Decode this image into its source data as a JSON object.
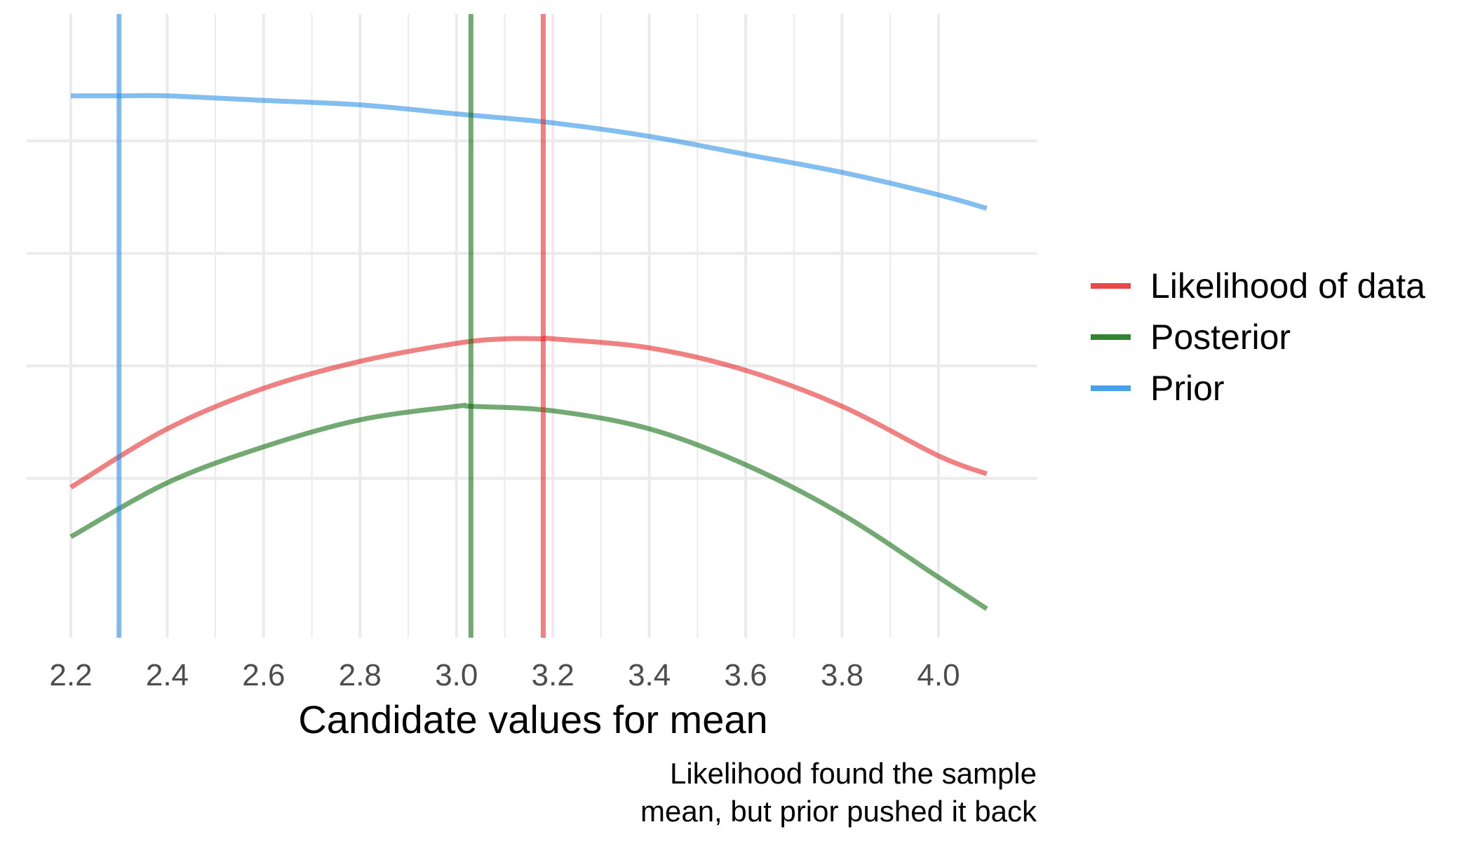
{
  "chart_data": {
    "type": "line",
    "title": "",
    "xlabel": "Candidate values for mean",
    "ylabel": "",
    "xlim": [
      2.2,
      4.1
    ],
    "ylim": [
      0,
      1.2
    ],
    "x_ticks": [
      "2.2",
      "2.4",
      "2.6",
      "2.8",
      "3.0",
      "3.2",
      "3.4",
      "3.6",
      "3.8",
      "4.0"
    ],
    "y_ticks_shown": false,
    "grid": true,
    "legend_position": "right",
    "series": [
      {
        "name": "Likelihood of data",
        "color": "#e41a1c",
        "x": [
          2.2,
          2.4,
          2.6,
          2.8,
          3.0,
          3.1,
          3.18,
          3.2,
          3.4,
          3.6,
          3.8,
          4.0,
          4.1
        ],
        "y": [
          0.23,
          0.36,
          0.45,
          0.51,
          0.55,
          0.56,
          0.56,
          0.56,
          0.54,
          0.49,
          0.41,
          0.3,
          0.26
        ]
      },
      {
        "name": "Posterior",
        "color": "#006400",
        "x": [
          2.2,
          2.4,
          2.6,
          2.8,
          3.0,
          3.03,
          3.2,
          3.4,
          3.6,
          3.8,
          4.0,
          4.1
        ],
        "y": [
          0.12,
          0.24,
          0.32,
          0.38,
          0.41,
          0.41,
          0.4,
          0.36,
          0.28,
          0.17,
          0.03,
          -0.04
        ]
      },
      {
        "name": "Prior",
        "color": "#1e88e5",
        "x": [
          2.2,
          2.3,
          2.4,
          2.6,
          2.8,
          3.0,
          3.2,
          3.4,
          3.6,
          3.8,
          4.0,
          4.1
        ],
        "y": [
          1.1,
          1.1,
          1.1,
          1.09,
          1.08,
          1.06,
          1.04,
          1.01,
          0.97,
          0.93,
          0.88,
          0.85
        ]
      }
    ],
    "vertical_lines": [
      {
        "series": "Prior",
        "x": 2.3,
        "color": "#1e88e5"
      },
      {
        "series": "Posterior",
        "x": 3.03,
        "color": "#006400"
      },
      {
        "series": "Likelihood of data",
        "x": 3.18,
        "color": "#e41a1c"
      }
    ],
    "legend": [
      {
        "label": "Likelihood of data",
        "color": "#e41a1c"
      },
      {
        "label": "Posterior",
        "color": "#006400"
      },
      {
        "label": "Prior",
        "color": "#1e88e5"
      }
    ],
    "caption": [
      "Likelihood found the sample",
      "mean, but prior pushed it back"
    ]
  }
}
